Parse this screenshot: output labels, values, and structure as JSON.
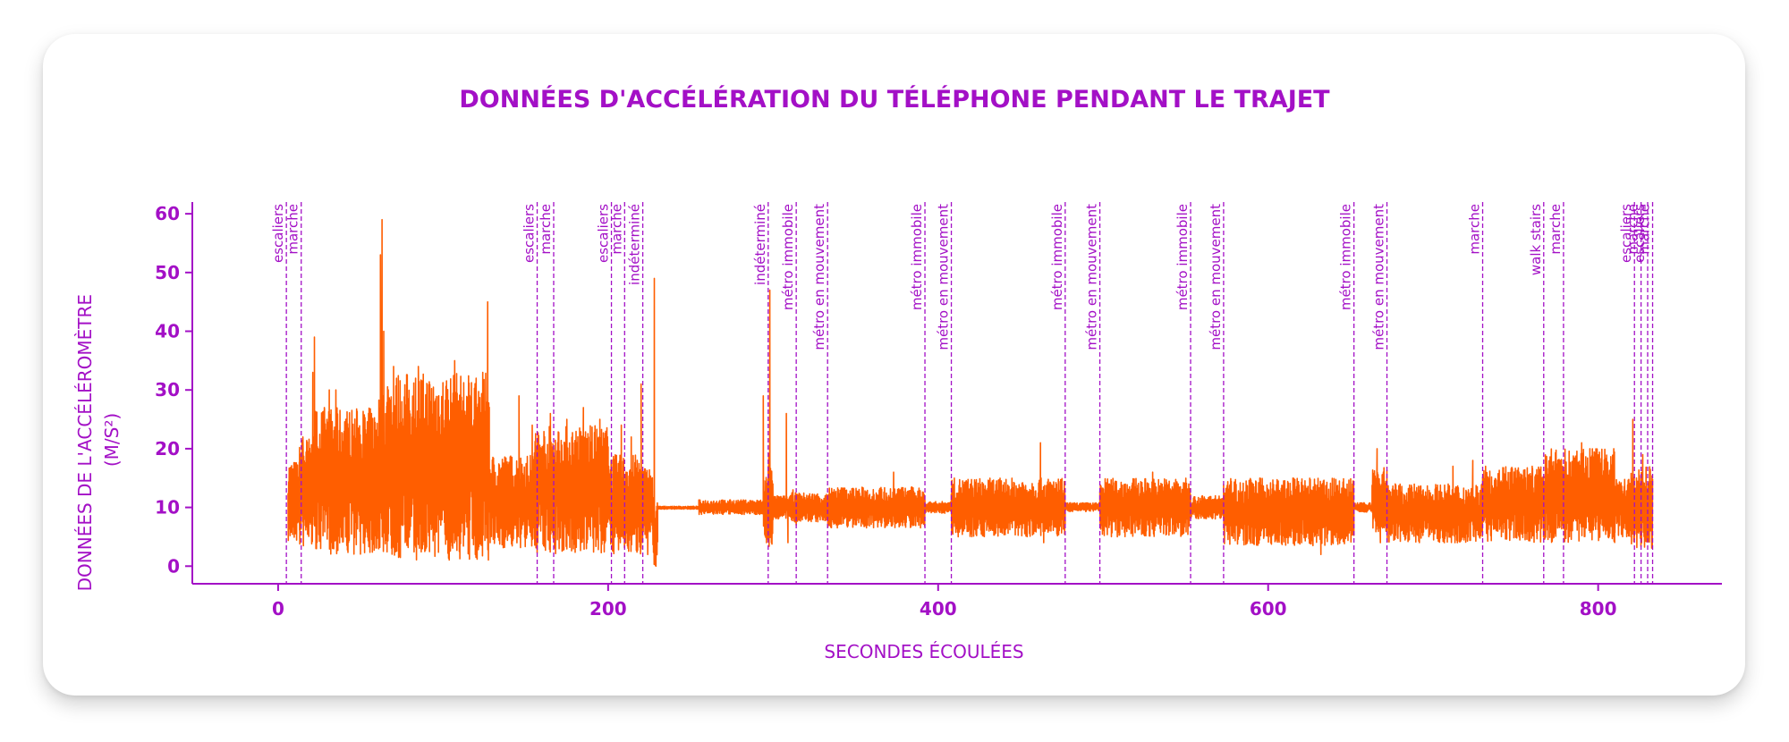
{
  "chart_data": {
    "type": "line",
    "title": "DONNÉES D'ACCÉLÉRATION DU TÉLÉPHONE PENDANT LE TRAJET",
    "xlabel": "SECONDES ÉCOULÉES",
    "ylabel_lines": [
      "DONNÉES DE L'ACCÉLÉROMÈTRE",
      "(M/S²)"
    ],
    "xlim": [
      -52,
      875
    ],
    "ylim": [
      -3,
      62
    ],
    "xticks": [
      0,
      200,
      400,
      600,
      800
    ],
    "yticks": [
      0,
      10,
      20,
      30,
      40,
      50,
      60
    ],
    "grid": false,
    "colors": {
      "series": "#ff5e00",
      "accent": "#a310c6"
    },
    "series": [
      {
        "segments": [
          {
            "x0": 6,
            "x1": 13,
            "min": 4,
            "max": 18,
            "peaks": []
          },
          {
            "x0": 13,
            "x1": 22,
            "min": 3,
            "max": 22,
            "peaks": [
              [
                15,
                22
              ]
            ]
          },
          {
            "x0": 22,
            "x1": 60,
            "min": 2,
            "max": 27,
            "peaks": [
              [
                21,
                33
              ],
              [
                22,
                39
              ],
              [
                28,
                27
              ],
              [
                31,
                30
              ],
              [
                35,
                30
              ],
              [
                41,
                25
              ]
            ]
          },
          {
            "x0": 60,
            "x1": 66,
            "min": 2,
            "max": 30,
            "peaks": [
              [
                62,
                53
              ],
              [
                63,
                59
              ],
              [
                64,
                40
              ]
            ]
          },
          {
            "x0": 66,
            "x1": 128,
            "min": 1,
            "max": 33,
            "peaks": [
              [
                70,
                34
              ],
              [
                85,
                34
              ],
              [
                107,
                35
              ],
              [
                120,
                32
              ],
              [
                127,
                45
              ]
            ]
          },
          {
            "x0": 128,
            "x1": 155,
            "min": 3,
            "max": 19,
            "peaks": [
              [
                146,
                29
              ],
              [
                154,
                24
              ]
            ]
          },
          {
            "x0": 155,
            "x1": 200,
            "min": 2,
            "max": 24,
            "peaks": [
              [
                165,
                26
              ],
              [
                175,
                25
              ],
              [
                185,
                27
              ],
              [
                195,
                25
              ]
            ]
          },
          {
            "x0": 200,
            "x1": 220,
            "min": 2,
            "max": 19,
            "peaks": [
              [
                208,
                24
              ],
              [
                214,
                22
              ]
            ]
          },
          {
            "x0": 220,
            "x1": 227,
            "min": 4,
            "max": 17,
            "peaks": [
              [
                220,
                31
              ],
              [
                224,
                2
              ]
            ]
          },
          {
            "x0": 227,
            "x1": 230,
            "min": 0,
            "max": 12,
            "peaks": [
              [
                228,
                49
              ],
              [
                229,
                0
              ]
            ]
          },
          {
            "x0": 230,
            "x1": 255,
            "min": 9.7,
            "max": 10.2,
            "peaks": []
          },
          {
            "x0": 255,
            "x1": 294,
            "min": 8.8,
            "max": 11.3,
            "peaks": []
          },
          {
            "x0": 294,
            "x1": 297,
            "min": 4,
            "max": 16,
            "peaks": [
              [
                294,
                29
              ],
              [
                296,
                4
              ]
            ]
          },
          {
            "x0": 297,
            "x1": 300,
            "min": 3,
            "max": 20,
            "peaks": [
              [
                298,
                47
              ],
              [
                299,
                4
              ]
            ]
          },
          {
            "x0": 300,
            "x1": 311,
            "min": 8,
            "max": 12,
            "peaks": [
              [
                308,
                26
              ],
              [
                309,
                4
              ]
            ]
          },
          {
            "x0": 311,
            "x1": 333,
            "min": 7.5,
            "max": 12.5,
            "peaks": [
              [
                312,
                13
              ],
              [
                314,
                7
              ]
            ]
          },
          {
            "x0": 333,
            "x1": 392,
            "min": 6.5,
            "max": 13.5,
            "peaks": [
              [
                373,
                16
              ]
            ]
          },
          {
            "x0": 392,
            "x1": 408,
            "min": 9,
            "max": 11,
            "peaks": []
          },
          {
            "x0": 408,
            "x1": 477,
            "min": 5,
            "max": 15,
            "peaks": [
              [
                462,
                21
              ],
              [
                464,
                4
              ]
            ]
          },
          {
            "x0": 477,
            "x1": 498,
            "min": 9.3,
            "max": 10.8,
            "peaks": []
          },
          {
            "x0": 498,
            "x1": 553,
            "min": 5,
            "max": 15,
            "peaks": [
              [
                530,
                16
              ]
            ]
          },
          {
            "x0": 553,
            "x1": 573,
            "min": 8,
            "max": 12,
            "peaks": [
              [
                568,
                12
              ]
            ]
          },
          {
            "x0": 573,
            "x1": 652,
            "min": 3.5,
            "max": 15,
            "peaks": [
              [
                615,
                15
              ],
              [
                632,
                2
              ]
            ]
          },
          {
            "x0": 652,
            "x1": 663,
            "min": 9.2,
            "max": 10.8,
            "peaks": []
          },
          {
            "x0": 663,
            "x1": 672,
            "min": 5,
            "max": 17,
            "peaks": [
              [
                666,
                20
              ],
              [
                668,
                4
              ]
            ]
          },
          {
            "x0": 672,
            "x1": 730,
            "min": 4,
            "max": 14,
            "peaks": [
              [
                712,
                17
              ],
              [
                724,
                18
              ]
            ]
          },
          {
            "x0": 730,
            "x1": 768,
            "min": 4,
            "max": 17,
            "peaks": [
              [
                744,
                16
              ],
              [
                760,
                17
              ]
            ]
          },
          {
            "x0": 768,
            "x1": 810,
            "min": 4,
            "max": 20,
            "peaks": [
              [
                777,
                18
              ],
              [
                790,
                21
              ],
              [
                795,
                20
              ]
            ]
          },
          {
            "x0": 810,
            "x1": 820,
            "min": 5,
            "max": 15,
            "peaks": []
          },
          {
            "x0": 820,
            "x1": 833,
            "min": 3,
            "max": 17,
            "peaks": [
              [
                821,
                25
              ],
              [
                827,
                19
              ]
            ]
          }
        ]
      }
    ],
    "annotations": [
      {
        "x": 5,
        "label": "escaliers"
      },
      {
        "x": 14,
        "label": "marche"
      },
      {
        "x": 157,
        "label": "escaliers"
      },
      {
        "x": 167,
        "label": "marche"
      },
      {
        "x": 202,
        "label": "escaliers"
      },
      {
        "x": 210,
        "label": "marche"
      },
      {
        "x": 221,
        "label": "indéterminé"
      },
      {
        "x": 297,
        "label": "indéterminé"
      },
      {
        "x": 314,
        "label": "métro immobile"
      },
      {
        "x": 333,
        "label": "métro en mouvement"
      },
      {
        "x": 392,
        "label": "métro immobile"
      },
      {
        "x": 408,
        "label": "métro en mouvement"
      },
      {
        "x": 477,
        "label": "métro immobile"
      },
      {
        "x": 498,
        "label": "métro en mouvement"
      },
      {
        "x": 553,
        "label": "métro immobile"
      },
      {
        "x": 573,
        "label": "métro en mouvement"
      },
      {
        "x": 652,
        "label": "métro immobile"
      },
      {
        "x": 672,
        "label": "métro en mouvement"
      },
      {
        "x": 730,
        "label": "marche"
      },
      {
        "x": 767,
        "label": "walk stairs"
      },
      {
        "x": 779,
        "label": "marche"
      },
      {
        "x": 822,
        "label": "escaliers"
      },
      {
        "x": 826,
        "label": "marche"
      },
      {
        "x": 830,
        "label": "escaliers"
      },
      {
        "x": 833,
        "label": "marche"
      }
    ]
  }
}
